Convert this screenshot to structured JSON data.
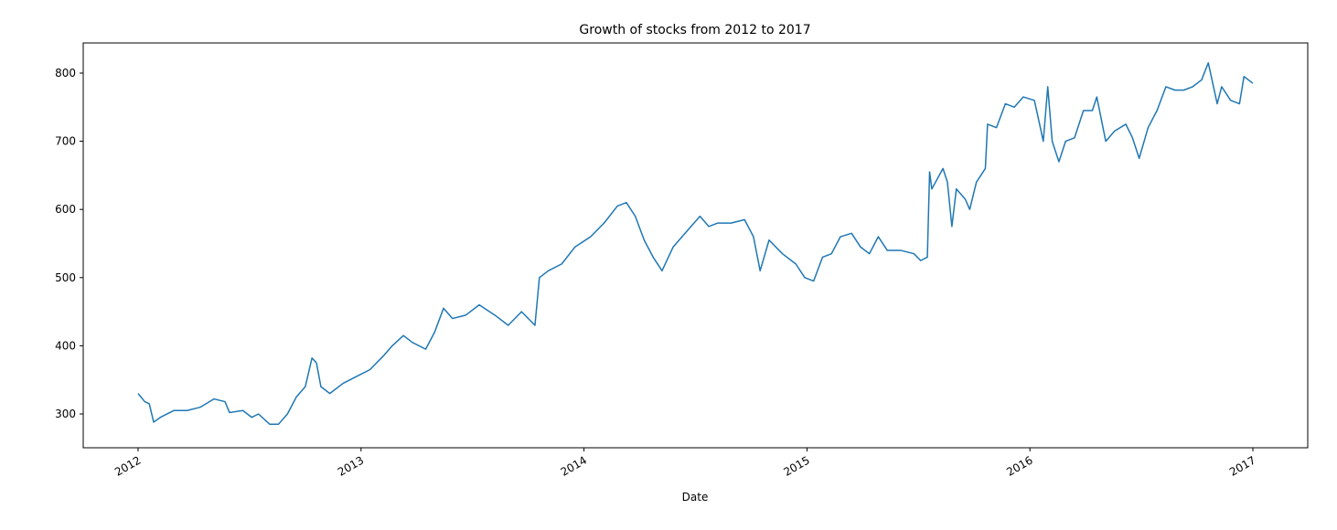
{
  "chart_data": {
    "type": "line",
    "title": "Growth of stocks from 2012 to 2017",
    "x_label": "Date",
    "x": [
      2012.0,
      2012.03,
      2012.05,
      2012.07,
      2012.1,
      2012.16,
      2012.22,
      2012.28,
      2012.34,
      2012.39,
      2012.41,
      2012.47,
      2012.51,
      2012.54,
      2012.59,
      2012.63,
      2012.67,
      2012.71,
      2012.75,
      2012.78,
      2012.8,
      2012.82,
      2012.86,
      2012.92,
      2012.98,
      2013.04,
      2013.1,
      2013.14,
      2013.19,
      2013.23,
      2013.29,
      2013.33,
      2013.37,
      2013.41,
      2013.47,
      2013.53,
      2013.6,
      2013.66,
      2013.72,
      2013.78,
      2013.8,
      2013.84,
      2013.9,
      2013.96,
      2014.03,
      2014.09,
      2014.15,
      2014.19,
      2014.23,
      2014.27,
      2014.31,
      2014.35,
      2014.4,
      2014.44,
      2014.48,
      2014.52,
      2014.56,
      2014.6,
      2014.66,
      2014.72,
      2014.76,
      2014.79,
      2014.83,
      2014.89,
      2014.95,
      2014.99,
      2015.03,
      2015.07,
      2015.11,
      2015.15,
      2015.2,
      2015.24,
      2015.28,
      2015.32,
      2015.36,
      2015.42,
      2015.48,
      2015.51,
      2015.54,
      2015.55,
      2015.56,
      2015.61,
      2015.63,
      2015.65,
      2015.67,
      2015.71,
      2015.73,
      2015.76,
      2015.8,
      2015.81,
      2015.85,
      2015.89,
      2015.93,
      2015.97,
      2016.02,
      2016.06,
      2016.08,
      2016.1,
      2016.13,
      2016.16,
      2016.2,
      2016.24,
      2016.28,
      2016.3,
      2016.34,
      2016.38,
      2016.43,
      2016.46,
      2016.49,
      2016.53,
      2016.57,
      2016.61,
      2016.65,
      2016.69,
      2016.73,
      2016.77,
      2016.8,
      2016.84,
      2016.86,
      2016.9,
      2016.94,
      2016.96,
      2017.0
    ],
    "series": [
      {
        "color": "#1f77b4",
        "values": [
          330,
          318,
          315,
          288,
          295,
          305,
          305,
          310,
          322,
          318,
          302,
          305,
          295,
          300,
          285,
          285,
          300,
          325,
          340,
          382,
          375,
          340,
          330,
          345,
          355,
          365,
          385,
          400,
          415,
          405,
          395,
          420,
          455,
          440,
          445,
          460,
          445,
          430,
          450,
          430,
          500,
          510,
          520,
          545,
          560,
          580,
          605,
          610,
          590,
          555,
          530,
          510,
          545,
          560,
          575,
          590,
          575,
          580,
          580,
          585,
          560,
          510,
          555,
          535,
          520,
          500,
          495,
          530,
          535,
          560,
          565,
          545,
          535,
          560,
          540,
          540,
          535,
          525,
          530,
          655,
          630,
          660,
          640,
          575,
          630,
          615,
          600,
          640,
          660,
          725,
          720,
          755,
          750,
          765,
          760,
          700,
          780,
          700,
          670,
          700,
          705,
          745,
          745,
          765,
          700,
          715,
          725,
          705,
          675,
          720,
          745,
          780,
          775,
          775,
          780,
          790,
          815,
          755,
          780,
          760,
          755,
          795,
          785
        ]
      }
    ],
    "xlim": [
      2011.754,
      2017.246
    ],
    "xticks": [
      2012,
      2013,
      2014,
      2015,
      2016,
      2017
    ],
    "ylim": [
      250.4,
      844.2
    ],
    "yticks": [
      300,
      400,
      500,
      600,
      700,
      800
    ],
    "grid": false
  }
}
